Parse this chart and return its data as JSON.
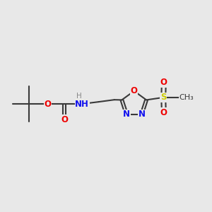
{
  "bg_color": "#e8e8e8",
  "bond_color": "#3a3a3a",
  "bond_width": 1.5,
  "atom_colors": {
    "O": "#ee0000",
    "N": "#1010ee",
    "S": "#cccc00",
    "C": "#3a3a3a",
    "H": "#888888"
  },
  "font_size": 8.5,
  "fig_width": 3.0,
  "fig_height": 3.0,
  "dpi": 100,
  "xlim": [
    0,
    10
  ],
  "ylim": [
    2,
    8
  ]
}
